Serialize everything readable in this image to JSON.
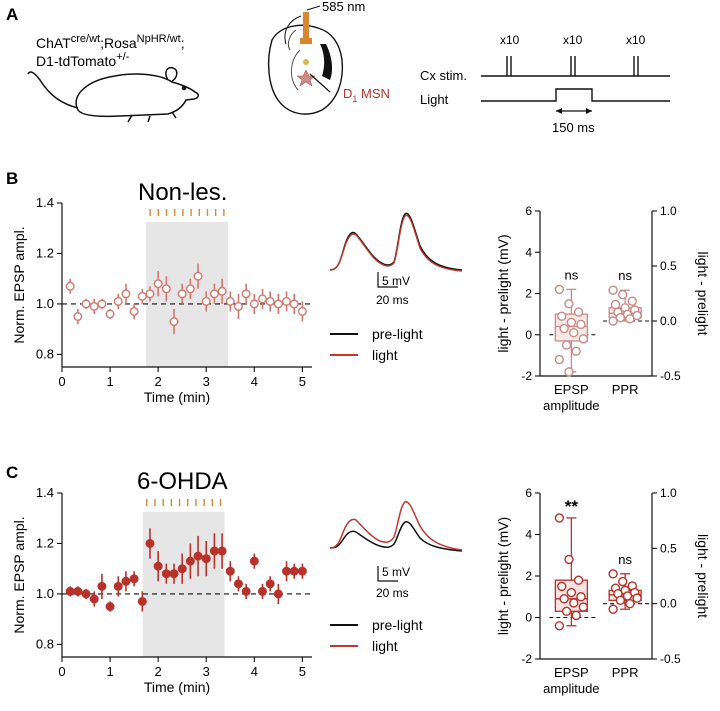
{
  "colors": {
    "dark_red": "#b8322a",
    "light_red": "#d4776c",
    "pink": "#c98b85",
    "orange": "#d9872f",
    "gray_shade": "#e6e6e6",
    "black": "#111111",
    "icon_name_mouse": "mouse-icon",
    "icon_name_brain": "brain-slice-icon"
  },
  "panel_a": {
    "letter": "A",
    "genotype_line1_base": "ChAT",
    "genotype_line1_sup1": "cre/wt",
    "genotype_line1_mid": ";Rosa",
    "genotype_line1_sup2": "NpHR/wt",
    "genotype_line1_end": ";",
    "genotype_line2_base": "D1-tdTomato",
    "genotype_line2_sup": "+/-",
    "wavelength": "585 nm",
    "d1_prefix": "D",
    "d1_sub": "1",
    "d1_suffix": " MSN",
    "cx_stim": "Cx stim.",
    "light": "Light",
    "x10": "x10",
    "duration": "150 ms"
  },
  "trace_legend": {
    "pre": "pre-light",
    "light": "light",
    "scale_mv": "5 mV",
    "scale_ms": "20 ms"
  },
  "chart_data": [
    {
      "type": "scatter",
      "panel": "B",
      "title": "Non-les.",
      "xlabel": "Time (min)",
      "ylabel": "Norm. EPSP ampl.",
      "xlim": [
        0,
        5.2
      ],
      "ylim": [
        0.75,
        1.4
      ],
      "xticks": [
        "0",
        "1",
        "2",
        "3",
        "4",
        "5"
      ],
      "yticks": [
        "0.8",
        "1.0",
        "1.2",
        "1.4"
      ],
      "shaded_range": [
        1.75,
        3.45
      ],
      "stim_ticks": 10,
      "marker": "open",
      "x": [
        0.17,
        0.33,
        0.5,
        0.67,
        0.83,
        1.0,
        1.17,
        1.33,
        1.5,
        1.67,
        1.83,
        2.0,
        2.17,
        2.33,
        2.5,
        2.67,
        2.83,
        3.0,
        3.17,
        3.33,
        3.5,
        3.67,
        3.83,
        4.0,
        4.17,
        4.33,
        4.5,
        4.67,
        4.83,
        5.0
      ],
      "y": [
        1.07,
        0.95,
        1.0,
        0.99,
        1.0,
        0.96,
        1.01,
        1.04,
        0.97,
        1.03,
        1.04,
        1.08,
        1.06,
        0.93,
        1.04,
        1.06,
        1.11,
        1.01,
        1.04,
        1.05,
        1.01,
        0.99,
        1.04,
        1.0,
        1.02,
        1.01,
        1.0,
        1.01,
        1.0,
        0.97
      ],
      "err": [
        0.03,
        0.03,
        0.02,
        0.03,
        0.02,
        0.02,
        0.03,
        0.04,
        0.03,
        0.03,
        0.03,
        0.05,
        0.05,
        0.05,
        0.04,
        0.04,
        0.05,
        0.04,
        0.04,
        0.05,
        0.04,
        0.05,
        0.04,
        0.04,
        0.04,
        0.04,
        0.04,
        0.04,
        0.04,
        0.04
      ]
    },
    {
      "type": "box",
      "panel": "B",
      "ylabel_left": "light - prelight (mV)",
      "ylabel_right": "light - prelight",
      "ylim_left": [
        -2,
        6
      ],
      "ylim_right": [
        -0.5,
        1.0
      ],
      "yticks_left": [
        "-2",
        "0",
        "2",
        "4",
        "6"
      ],
      "yticks_right": [
        "-0.5",
        "0.0",
        "0.5",
        "1.0"
      ],
      "categories": [
        "EPSP amplitude",
        "PPR"
      ],
      "significance": [
        "ns",
        "ns"
      ],
      "boxes": [
        {
          "min": -1.8,
          "q1": -0.3,
          "median": 0.4,
          "q3": 1.0,
          "max": 2.2,
          "points": [
            2.2,
            1.5,
            1.1,
            0.9,
            0.6,
            0.5,
            0.3,
            0.1,
            -0.2,
            -0.5,
            -0.8,
            -1.2,
            -1.8
          ]
        },
        {
          "min": 0.0,
          "q1": 0.03,
          "median": 0.07,
          "q3": 0.12,
          "max": 0.28,
          "points": [
            0.28,
            0.24,
            0.18,
            0.15,
            0.12,
            0.1,
            0.08,
            0.06,
            0.05,
            0.03,
            0.02,
            0.0
          ]
        }
      ]
    },
    {
      "type": "scatter",
      "panel": "C",
      "title": "6-OHDA",
      "xlabel": "Time (min)",
      "ylabel": "Norm. EPSP ampl.",
      "xlim": [
        0,
        5.2
      ],
      "ylim": [
        0.75,
        1.4
      ],
      "xticks": [
        "0",
        "1",
        "2",
        "3",
        "4",
        "5"
      ],
      "yticks": [
        "0.8",
        "1.0",
        "1.2",
        "1.4"
      ],
      "shaded_range": [
        1.68,
        3.38
      ],
      "stim_ticks": 10,
      "marker": "filled",
      "x": [
        0.17,
        0.33,
        0.5,
        0.67,
        0.83,
        1.0,
        1.17,
        1.33,
        1.5,
        1.67,
        1.83,
        2.0,
        2.17,
        2.33,
        2.5,
        2.67,
        2.83,
        3.0,
        3.17,
        3.33,
        3.5,
        3.67,
        3.83,
        4.0,
        4.17,
        4.33,
        4.5,
        4.67,
        4.83,
        5.0
      ],
      "y": [
        1.01,
        1.01,
        1.0,
        0.98,
        1.03,
        0.95,
        1.03,
        1.05,
        1.06,
        0.97,
        1.2,
        1.11,
        1.08,
        1.08,
        1.1,
        1.13,
        1.15,
        1.14,
        1.17,
        1.17,
        1.09,
        1.04,
        1.01,
        1.13,
        1.01,
        1.04,
        1.0,
        1.09,
        1.09,
        1.09
      ],
      "err": [
        0.02,
        0.02,
        0.02,
        0.03,
        0.05,
        0.02,
        0.04,
        0.04,
        0.03,
        0.04,
        0.06,
        0.06,
        0.04,
        0.04,
        0.06,
        0.07,
        0.08,
        0.07,
        0.07,
        0.07,
        0.04,
        0.03,
        0.03,
        0.03,
        0.03,
        0.03,
        0.04,
        0.04,
        0.03,
        0.03
      ]
    },
    {
      "type": "box",
      "panel": "C",
      "ylabel_left": "light - prelight (mV)",
      "ylabel_right": "light - prelight",
      "ylim_left": [
        -2,
        6
      ],
      "ylim_right": [
        -0.5,
        1.0
      ],
      "yticks_left": [
        "-2",
        "0",
        "2",
        "4",
        "6"
      ],
      "yticks_right": [
        "-0.5",
        "0.0",
        "0.5",
        "1.0"
      ],
      "categories": [
        "EPSP amplitude",
        "PPR"
      ],
      "significance": [
        "**",
        "ns"
      ],
      "boxes": [
        {
          "min": -0.4,
          "q1": 0.3,
          "median": 0.9,
          "q3": 1.8,
          "max": 4.8,
          "points": [
            4.8,
            2.8,
            1.8,
            1.5,
            1.2,
            1.0,
            0.9,
            0.7,
            0.5,
            0.3,
            0.1,
            -0.4
          ]
        },
        {
          "min": -0.05,
          "q1": 0.03,
          "median": 0.08,
          "q3": 0.12,
          "max": 0.27,
          "points": [
            0.27,
            0.2,
            0.16,
            0.14,
            0.12,
            0.1,
            0.09,
            0.07,
            0.05,
            0.03,
            0.0,
            -0.05
          ]
        }
      ]
    }
  ]
}
